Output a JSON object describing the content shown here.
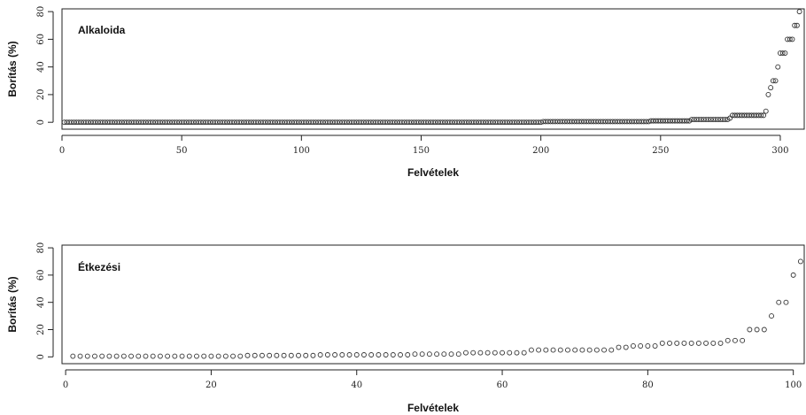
{
  "chart_data": [
    {
      "type": "scatter",
      "label": "Alkaloida",
      "xlabel": "Felvételek",
      "ylabel": "Borítás (%)",
      "xlim": [
        0,
        310
      ],
      "ylim": [
        -5,
        82
      ],
      "xticks": [
        0,
        50,
        100,
        150,
        200,
        250,
        300
      ],
      "yticks": [
        0,
        20,
        40,
        60,
        80
      ],
      "segments": [
        {
          "from": 1,
          "to": 200,
          "y": 0
        },
        {
          "from": 201,
          "to": 245,
          "y": 0.5
        },
        {
          "from": 246,
          "to": 262,
          "y": 1
        },
        {
          "from": 263,
          "to": 278,
          "y": 2
        },
        {
          "from": 279,
          "to": 279,
          "y": 3
        },
        {
          "from": 280,
          "to": 293,
          "y": 5
        }
      ],
      "points": [
        [
          294,
          8
        ],
        [
          295,
          20
        ],
        [
          296,
          25
        ],
        [
          297,
          30
        ],
        [
          298,
          30
        ],
        [
          299,
          40
        ],
        [
          300,
          50
        ],
        [
          301,
          50
        ],
        [
          302,
          50
        ],
        [
          303,
          60
        ],
        [
          304,
          60
        ],
        [
          305,
          60
        ],
        [
          306,
          70
        ],
        [
          307,
          70
        ],
        [
          308,
          80
        ]
      ]
    },
    {
      "type": "scatter",
      "label": "Étkezési",
      "xlabel": "Felvételek",
      "ylabel": "Borítás (%)",
      "xlim": [
        -0.5,
        101.5
      ],
      "ylim": [
        -5,
        82
      ],
      "xticks": [
        0,
        20,
        40,
        60,
        80,
        100
      ],
      "yticks": [
        0,
        20,
        40,
        60,
        80
      ],
      "y": [
        0.5,
        0.5,
        0.5,
        0.5,
        0.5,
        0.5,
        0.5,
        0.5,
        0.5,
        0.5,
        0.5,
        0.5,
        0.5,
        0.5,
        0.5,
        0.5,
        0.5,
        0.5,
        0.5,
        0.5,
        0.5,
        0.5,
        0.5,
        0.5,
        1,
        1,
        1,
        1,
        1,
        1,
        1,
        1,
        1,
        1,
        1.5,
        1.5,
        1.5,
        1.5,
        1.5,
        1.5,
        1.5,
        1.5,
        1.5,
        1.5,
        1.5,
        1.5,
        1.5,
        2,
        2,
        2,
        2,
        2,
        2,
        2,
        3,
        3,
        3,
        3,
        3,
        3,
        3,
        3,
        3,
        5,
        5,
        5,
        5,
        5,
        5,
        5,
        5,
        5,
        5,
        5,
        5,
        7,
        7,
        8,
        8,
        8,
        8,
        10,
        10,
        10,
        10,
        10,
        10,
        10,
        10,
        10,
        12,
        12,
        12,
        20,
        20,
        20,
        30,
        40,
        40,
        60,
        70
      ]
    }
  ]
}
